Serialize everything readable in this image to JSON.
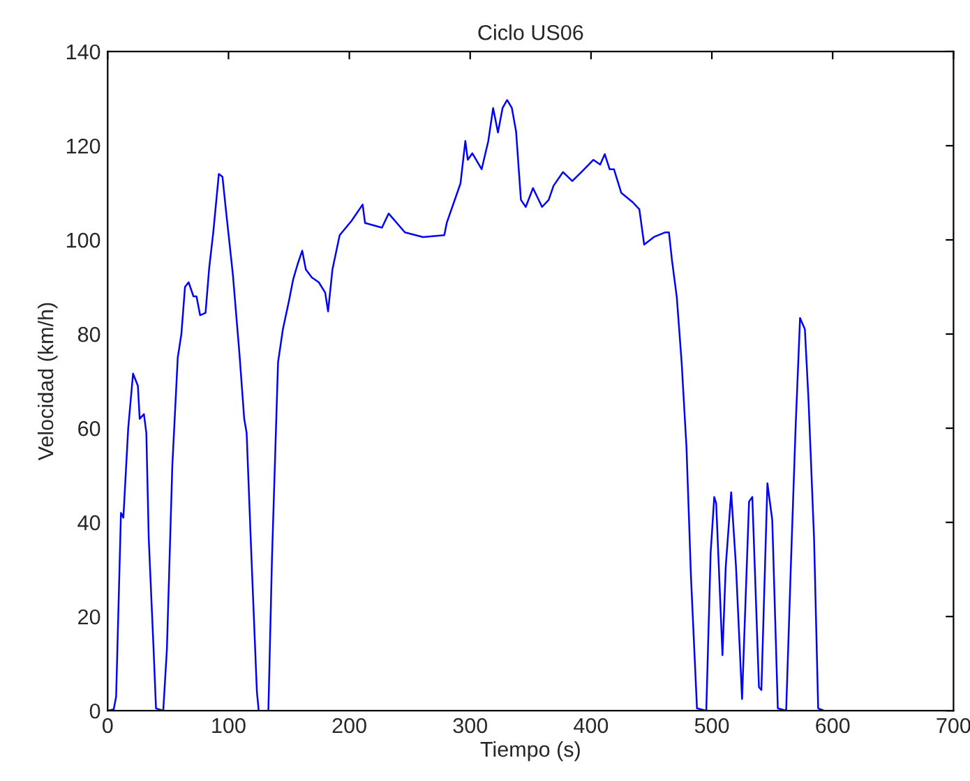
{
  "chart_data": {
    "type": "line",
    "title": "Ciclo US06",
    "xlabel": "Tiempo (s)",
    "ylabel": "Velocidad (km/h)",
    "xlim": [
      0,
      700
    ],
    "xticks": [
      0,
      100,
      200,
      300,
      400,
      500,
      600,
      700
    ],
    "ylim": [
      0,
      140
    ],
    "yticks": [
      0,
      20,
      40,
      60,
      80,
      100,
      120,
      140
    ],
    "grid": false,
    "marker": "none",
    "line_style": "solid",
    "series": [
      {
        "color": "#0000ff",
        "x": [
          0,
          5,
          7,
          11,
          13,
          17,
          21,
          25,
          26.5,
          30,
          32,
          34,
          38,
          40,
          46,
          49,
          53.5,
          58,
          61,
          64,
          67,
          71,
          73.5,
          76.5,
          81,
          84,
          87.4,
          92,
          95,
          97.8,
          103.6,
          109,
          113,
          115,
          119,
          123.5,
          125,
          133,
          136,
          141,
          145,
          150,
          153.6,
          157.4,
          161,
          164,
          169,
          174.7,
          180,
          182.4,
          186,
          192,
          201.7,
          211,
          213,
          227,
          232.5,
          246,
          261,
          278.6,
          280.6,
          292,
          296,
          298,
          301.8,
          309.5,
          315,
          319,
          323,
          326.8,
          330.6,
          334.5,
          338,
          342,
          346,
          352,
          359.5,
          365,
          369,
          376.8,
          384.5,
          392,
          402,
          407.6,
          411.4,
          415.4,
          419,
          425,
          434.5,
          440,
          444,
          452,
          461.5,
          464.5,
          467,
          471,
          475,
          479,
          481,
          482.7,
          487.7,
          495.4,
          499,
          502,
          503.6,
          508.8,
          511.5,
          516,
          520,
          525,
          530.8,
          533.5,
          539,
          541,
          546,
          550,
          554.6,
          561.5,
          565.5,
          569.3,
          573,
          577,
          580,
          584.6,
          588,
          593
        ],
        "values": [
          0,
          0.3,
          3,
          42,
          41,
          60,
          71.6,
          69,
          62,
          63,
          59,
          36.5,
          13,
          0.5,
          0,
          13,
          52,
          75,
          80,
          90,
          91,
          88,
          88,
          84,
          84.5,
          94,
          101.6,
          114,
          113.4,
          106.5,
          92.7,
          76,
          62,
          59,
          32.5,
          4,
          0,
          0,
          32.5,
          74,
          81,
          87,
          91.7,
          95,
          97.7,
          93.7,
          92,
          91,
          88.8,
          84.8,
          93.7,
          101,
          104,
          107.5,
          103.6,
          102.6,
          105.6,
          101.6,
          100.6,
          101,
          103.6,
          112,
          121,
          117,
          118.4,
          115,
          121,
          128,
          122.8,
          128,
          129.7,
          128,
          123,
          108.5,
          107,
          111,
          107,
          108.5,
          111.5,
          114.4,
          112.5,
          114.4,
          117,
          116,
          118.2,
          115,
          115,
          110,
          108,
          106.5,
          99,
          100.6,
          101.6,
          101.6,
          95.7,
          87.8,
          74,
          56,
          41.4,
          28.6,
          0.5,
          0,
          33.5,
          45.4,
          44,
          11.8,
          30.6,
          46.4,
          30.6,
          2.5,
          44.4,
          45.4,
          5,
          4.4,
          48.3,
          40.5,
          0.5,
          0,
          31.6,
          60,
          83.4,
          81,
          66,
          36.5,
          0.5,
          0
        ]
      }
    ]
  }
}
